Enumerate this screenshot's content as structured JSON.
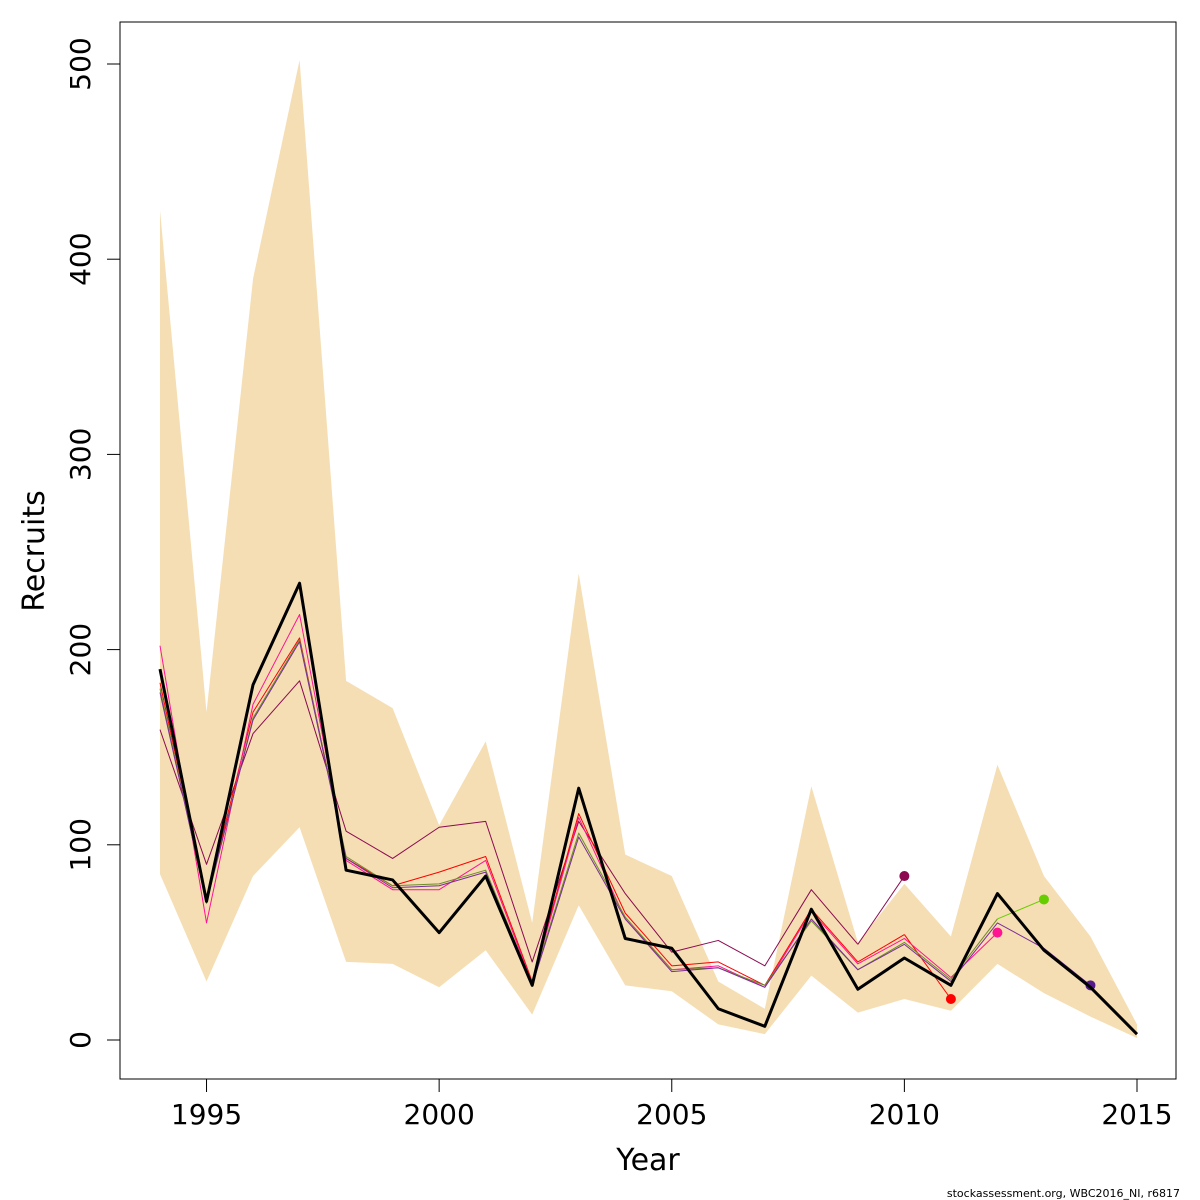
{
  "chart_data": {
    "type": "line",
    "title": "",
    "xlabel": "Year",
    "ylabel": "Recruits",
    "xlim": [
      1993.5,
      2015.8
    ],
    "ylim": [
      -20,
      520
    ],
    "xticks": [
      1995,
      2000,
      2005,
      2010,
      2015
    ],
    "yticks": [
      0,
      100,
      200,
      300,
      400,
      500
    ],
    "grid": false,
    "legend": "none",
    "band": {
      "color": "#F5DEB3",
      "x": [
        1994,
        1995,
        1996,
        1997,
        1998,
        1999,
        2000,
        2001,
        2002,
        2003,
        2004,
        2005,
        2006,
        2007,
        2008,
        2009,
        2010,
        2011,
        2012,
        2013,
        2014,
        2015
      ],
      "upper": [
        425,
        168,
        390,
        502,
        184,
        170,
        110,
        153,
        60,
        239,
        95,
        84,
        30,
        16,
        130,
        50,
        80,
        53,
        141,
        84,
        53,
        8
      ],
      "lower": [
        85,
        30,
        84,
        109,
        40,
        39,
        27,
        46,
        13,
        69,
        28,
        25,
        8,
        3,
        33,
        14,
        21,
        15,
        39,
        24,
        12,
        1
      ]
    },
    "series": [
      {
        "color": "#000000",
        "x": [
          1994,
          1995,
          1996,
          1997,
          1998,
          1999,
          2000,
          2001,
          2002,
          2003,
          2004,
          2005,
          2006,
          2007,
          2008,
          2009,
          2010,
          2011,
          2012,
          2013,
          2014,
          2015
        ],
        "values": [
          190,
          71,
          182,
          234,
          87,
          82,
          55,
          84,
          28,
          129,
          52,
          47,
          16,
          7,
          67,
          26,
          42,
          28,
          75,
          46,
          27,
          3
        ]
      },
      {
        "color": "#8B0A50",
        "x": [
          1994,
          1995,
          1996,
          1997,
          1998,
          1999,
          2000,
          2001,
          2002,
          2003,
          2004,
          2005,
          2006,
          2007,
          2008,
          2009,
          2010
        ],
        "values": [
          159,
          90,
          157,
          184,
          107,
          93,
          109,
          112,
          40,
          112,
          75,
          45,
          51,
          38,
          77,
          49,
          84
        ],
        "endpoint": true
      },
      {
        "color": "#FF0000",
        "x": [
          1994,
          1995,
          1996,
          1997,
          1998,
          1999,
          2000,
          2001,
          2002,
          2003,
          2004,
          2005,
          2006,
          2007,
          2008,
          2009,
          2010,
          2011
        ],
        "values": [
          183,
          72,
          168,
          206,
          93,
          79,
          86,
          94,
          30,
          116,
          65,
          38,
          40,
          28,
          67,
          40,
          54,
          21
        ],
        "endpoint": true
      },
      {
        "color": "#FF1493",
        "x": [
          1994,
          1995,
          1996,
          1997,
          1998,
          1999,
          2000,
          2001,
          2002,
          2003,
          2004,
          2005,
          2006,
          2007,
          2008,
          2009,
          2010,
          2011,
          2012
        ],
        "values": [
          202,
          60,
          172,
          218,
          92,
          77,
          77,
          92,
          29,
          114,
          62,
          36,
          38,
          27,
          66,
          39,
          52,
          32,
          55
        ],
        "endpoint": true
      },
      {
        "color": "#6B8E23",
        "x": [
          1994,
          1995,
          1996,
          1997,
          1998,
          1999,
          2000,
          2001,
          2002,
          2003,
          2004,
          2005,
          2006,
          2007,
          2008,
          2009,
          2010,
          2011,
          2012,
          2013
        ],
        "values": [
          180,
          70,
          165,
          205,
          94,
          79,
          80,
          87,
          29,
          106,
          63,
          36,
          37,
          28,
          61,
          36,
          50,
          31,
          62,
          72
        ],
        "endpoint": true,
        "endcolor": "#66CD00"
      },
      {
        "color": "#7B2E9B",
        "x": [
          1994,
          1995,
          1996,
          1997,
          1998,
          1999,
          2000,
          2001,
          2002,
          2003,
          2004,
          2005,
          2006,
          2007,
          2008,
          2009,
          2010,
          2011,
          2012,
          2013,
          2014
        ],
        "values": [
          178,
          71,
          164,
          204,
          93,
          78,
          79,
          86,
          28,
          104,
          62,
          35,
          37,
          27,
          62,
          36,
          49,
          30,
          60,
          47,
          28
        ],
        "endpoint": true,
        "endcolor": "#551A8B"
      }
    ],
    "footer": "stockassessment.org, WBC2016_NI, r6817"
  }
}
